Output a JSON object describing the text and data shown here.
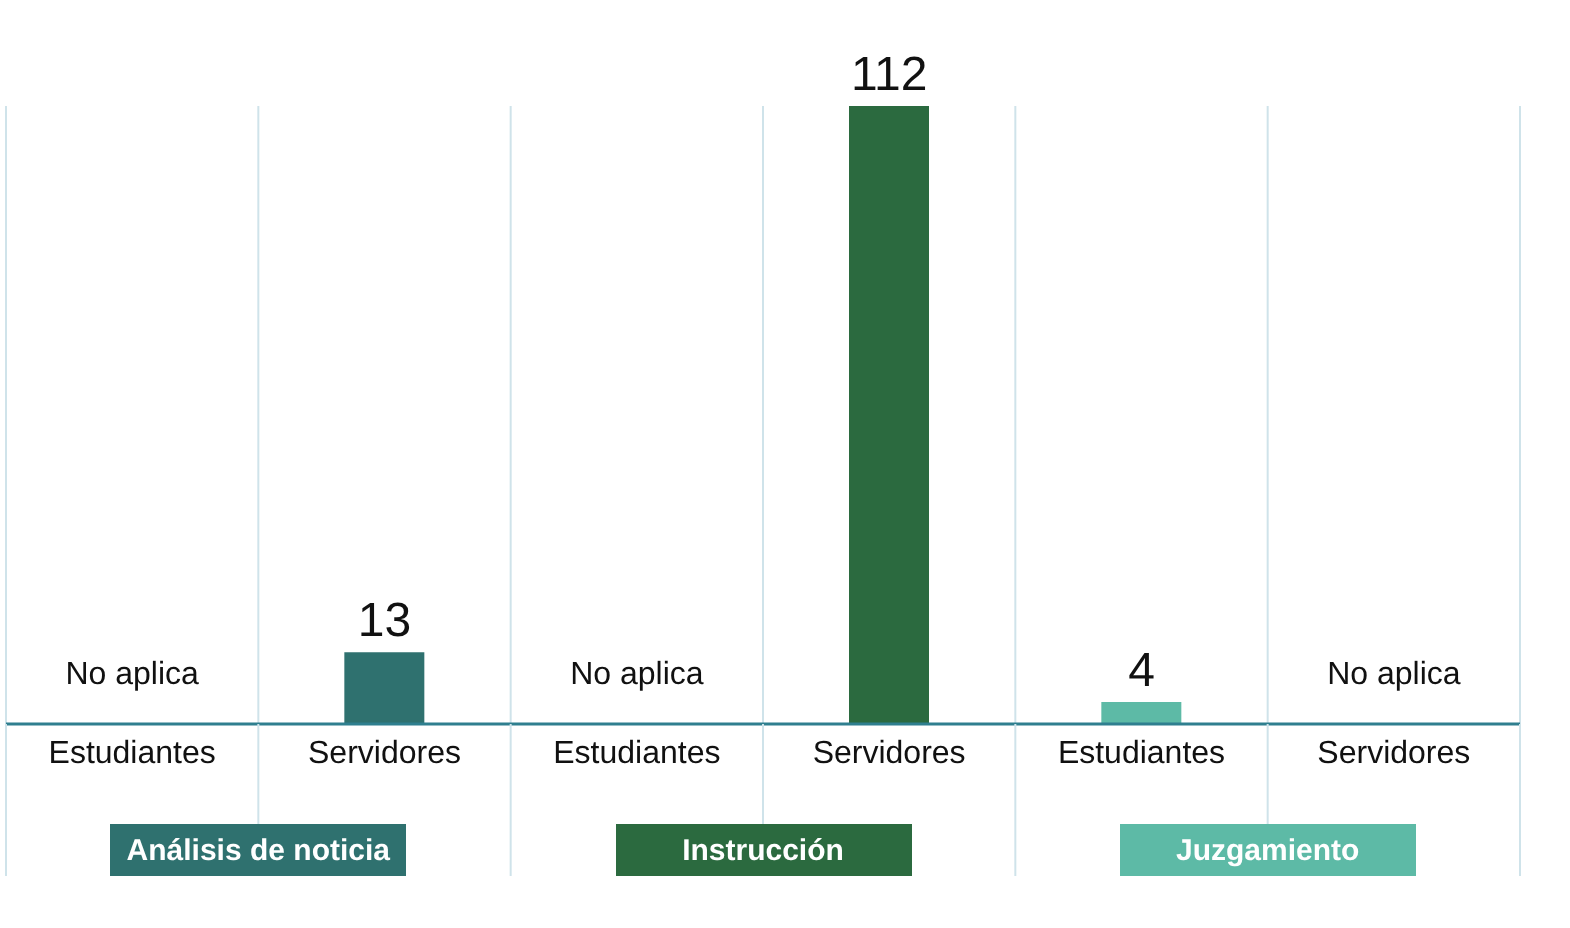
{
  "chart_data": {
    "type": "bar",
    "categories": [
      "Estudiantes",
      "Servidores",
      "Estudiantes",
      "Servidores",
      "Estudiantes",
      "Servidores"
    ],
    "series": [
      {
        "name": "Análisis de noticia",
        "color": "#2f716f",
        "values": [
          null,
          13,
          null,
          null,
          null,
          null
        ],
        "value_labels": [
          "No aplica",
          "13",
          null,
          null,
          null,
          null
        ]
      },
      {
        "name": "Instrucción",
        "color": "#2b6a3f",
        "values": [
          null,
          null,
          null,
          112,
          null,
          null
        ],
        "value_labels": [
          null,
          null,
          "No aplica",
          "112",
          null,
          null
        ]
      },
      {
        "name": "Juzgamiento",
        "color": "#5dbaa6",
        "values": [
          null,
          null,
          null,
          null,
          4,
          null
        ],
        "value_labels": [
          null,
          null,
          null,
          null,
          "4",
          "No aplica"
        ]
      }
    ],
    "stacked": true,
    "grid": "x",
    "legend": "bottom"
  }
}
